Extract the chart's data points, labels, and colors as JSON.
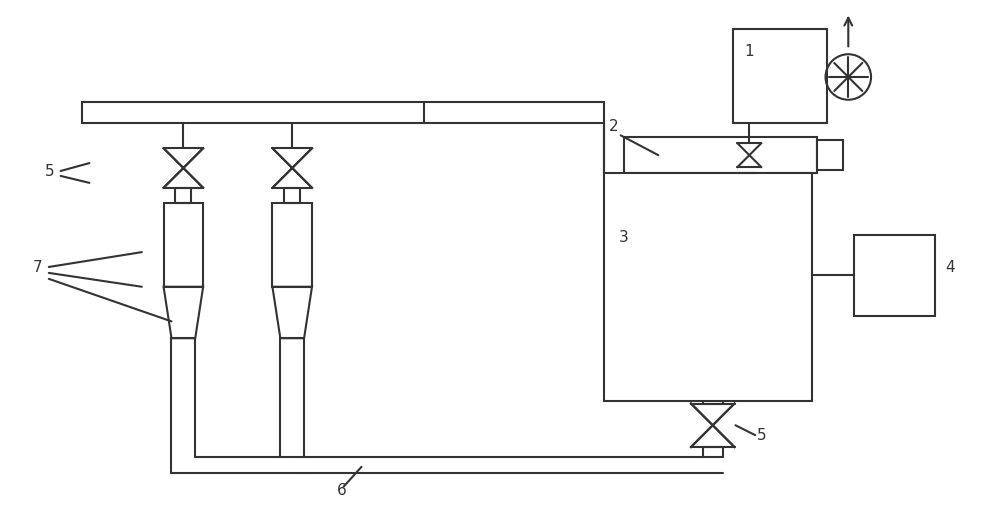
{
  "bg": "#ffffff",
  "lc": "#333333",
  "lw": 1.5
}
